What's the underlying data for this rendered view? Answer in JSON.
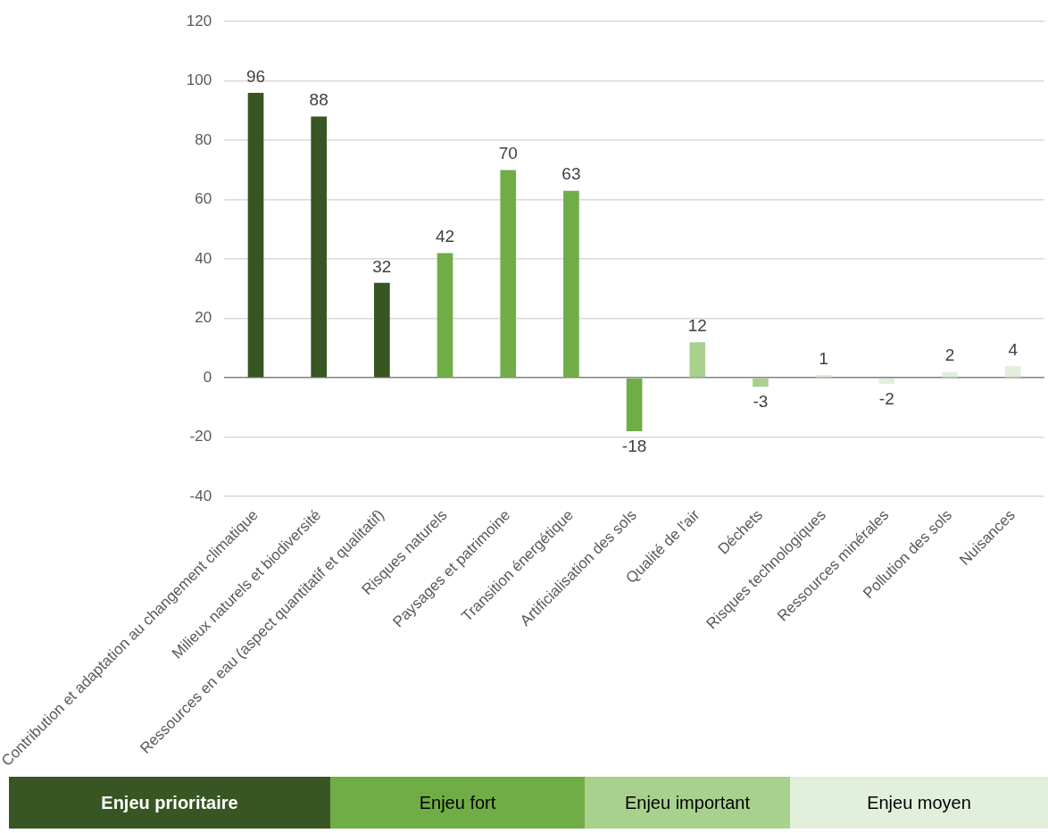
{
  "chart_data": {
    "type": "bar",
    "categories": [
      "Contribution et adaptation au changement climatique",
      "Milieux naturels et biodiversité",
      "Ressources en eau (aspect quantitatif et qualitatif)",
      "Risques naturels",
      "Paysages et patrimoine",
      "Transition énergétique",
      "Artificialisation des sols",
      "Qualité de l'air",
      "Déchets",
      "Risques technologiques",
      "Ressources minérales",
      "Pollution des sols",
      "Nuisances"
    ],
    "series": [
      {
        "name": "Enjeu prioritaire",
        "color": "#375623",
        "values": [
          96,
          88,
          32,
          null,
          null,
          null,
          null,
          null,
          null,
          null,
          null,
          null,
          null
        ]
      },
      {
        "name": "Enjeu fort",
        "color": "#70ad47",
        "values": [
          null,
          null,
          null,
          42,
          70,
          63,
          -18,
          null,
          null,
          null,
          null,
          null,
          null
        ]
      },
      {
        "name": "Enjeu important",
        "color": "#a9d18e",
        "values": [
          null,
          null,
          null,
          null,
          null,
          null,
          null,
          12,
          -3,
          null,
          null,
          null,
          null
        ]
      },
      {
        "name": "Enjeu moyen",
        "color": "#e2efda",
        "values": [
          null,
          null,
          null,
          null,
          null,
          null,
          null,
          null,
          null,
          1,
          -2,
          2,
          4
        ]
      }
    ],
    "ylim": [
      -40,
      120
    ],
    "yticks": [
      -40,
      -20,
      0,
      20,
      40,
      60,
      80,
      100,
      120
    ],
    "grid": "y",
    "data_labels": true,
    "legend": "bottom"
  }
}
